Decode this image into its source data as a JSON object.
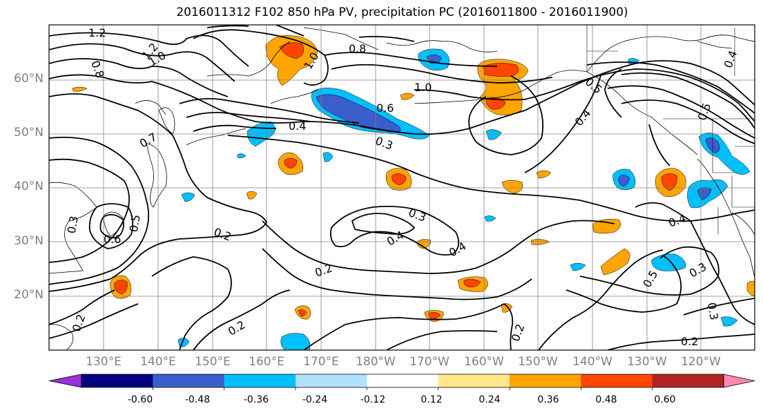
{
  "title": "2016011312 F102 850 hPa PV, precipitation PC (2016011800 - 2016011900)",
  "latitude_labels": [
    "60°N",
    "50°N",
    "40°N",
    "30°N",
    "20°N"
  ],
  "longitude_labels": [
    "130°E",
    "140°E",
    "150°E",
    "160°E",
    "170°E",
    "180°W",
    "170°W",
    "160°W",
    "150°W",
    "140°W",
    "130°W",
    "120°W"
  ],
  "pv_contour_labels": [
    "1.2",
    "1.2",
    "1.0",
    "0.8",
    "0.8",
    "1.0",
    "1.0",
    "0.6",
    "0.5",
    "0.4",
    "0.7",
    "0.3",
    "0.5",
    "0.4",
    "0.3",
    "0.6",
    "0.5",
    "0.3",
    "0.2",
    "0.4",
    "0.4",
    "0.3",
    "0.2",
    "0.2",
    "0.2",
    "0.2",
    "0.4",
    "0.3",
    "0.5",
    "0.2",
    "0.4"
  ],
  "colorbar": {
    "tick_labels": [
      "-0.60",
      "-0.48",
      "-0.36",
      "-0.24",
      "-0.12",
      "0.12",
      "0.24",
      "0.36",
      "0.48",
      "0.60"
    ],
    "colors": [
      "#9b30d9",
      "#000080",
      "#3a5fcd",
      "#00bfff",
      "#b0e2ff",
      "#ffffff",
      "#ffe98a",
      "#ffa500",
      "#ff4500",
      "#b22222",
      "#ff88b0"
    ]
  }
}
